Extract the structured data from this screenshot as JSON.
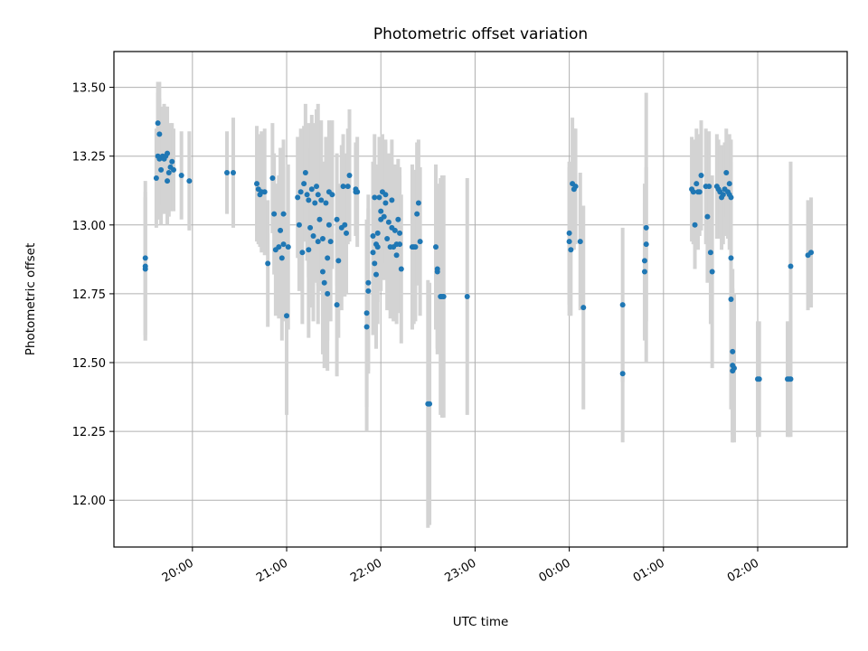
{
  "chart_data": {
    "type": "scatter",
    "title": "Photometric offset variation",
    "xlabel": "UTC time",
    "ylabel": "Photometric offset",
    "xlim": [
      "19:10",
      "02:57"
    ],
    "ylim": [
      11.83,
      13.63
    ],
    "grid": true,
    "x_ticks": [
      "20:00",
      "21:00",
      "22:00",
      "23:00",
      "00:00",
      "01:00",
      "02:00"
    ],
    "y_ticks": [
      "12.00",
      "12.25",
      "12.50",
      "12.75",
      "13.00",
      "13.25",
      "13.50"
    ],
    "colors": {
      "points": "#1f77b4",
      "error_bars": "#d3d3d3",
      "grid": "#b0b0b0"
    },
    "series": [
      {
        "points": [
          {
            "t": "19:30",
            "y": 12.85,
            "e": 0.27
          },
          {
            "t": "19:30",
            "y": 12.88,
            "e": 0.28
          },
          {
            "t": "19:30",
            "y": 12.84,
            "e": 0.26
          },
          {
            "t": "19:37",
            "y": 13.17,
            "e": 0.18
          },
          {
            "t": "19:38",
            "y": 13.25,
            "e": 0.23
          },
          {
            "t": "19:38",
            "y": 13.37,
            "e": 0.15
          },
          {
            "t": "19:39",
            "y": 13.24,
            "e": 0.22
          },
          {
            "t": "19:39",
            "y": 13.33,
            "e": 0.19
          },
          {
            "t": "19:40",
            "y": 13.2,
            "e": 0.2
          },
          {
            "t": "19:41",
            "y": 13.25,
            "e": 0.18
          },
          {
            "t": "19:42",
            "y": 13.24,
            "e": 0.2
          },
          {
            "t": "19:43",
            "y": 13.25,
            "e": 0.18
          },
          {
            "t": "19:44",
            "y": 13.16,
            "e": 0.16
          },
          {
            "t": "19:44",
            "y": 13.26,
            "e": 0.17
          },
          {
            "t": "19:45",
            "y": 13.19,
            "e": 0.16
          },
          {
            "t": "19:46",
            "y": 13.21,
            "e": 0.16
          },
          {
            "t": "19:47",
            "y": 13.23,
            "e": 0.14
          },
          {
            "t": "19:48",
            "y": 13.2,
            "e": 0.15
          },
          {
            "t": "19:53",
            "y": 13.18,
            "e": 0.16
          },
          {
            "t": "19:58",
            "y": 13.16,
            "e": 0.18
          },
          {
            "t": "20:22",
            "y": 13.19,
            "e": 0.15
          },
          {
            "t": "20:26",
            "y": 13.19,
            "e": 0.2
          },
          {
            "t": "20:41",
            "y": 13.15,
            "e": 0.21
          },
          {
            "t": "20:42",
            "y": 13.13,
            "e": 0.2
          },
          {
            "t": "20:43",
            "y": 13.11,
            "e": 0.19
          },
          {
            "t": "20:44",
            "y": 13.12,
            "e": 0.22
          },
          {
            "t": "20:46",
            "y": 13.12,
            "e": 0.23
          },
          {
            "t": "20:48",
            "y": 12.86,
            "e": 0.23
          },
          {
            "t": "20:51",
            "y": 13.17,
            "e": 0.2
          },
          {
            "t": "20:52",
            "y": 13.04,
            "e": 0.22
          },
          {
            "t": "20:53",
            "y": 12.91,
            "e": 0.24
          },
          {
            "t": "20:55",
            "y": 12.92,
            "e": 0.26
          },
          {
            "t": "20:56",
            "y": 12.98,
            "e": 0.3
          },
          {
            "t": "20:57",
            "y": 12.88,
            "e": 0.3
          },
          {
            "t": "20:58",
            "y": 13.04,
            "e": 0.27
          },
          {
            "t": "20:58",
            "y": 12.93,
            "e": 0.28
          },
          {
            "t": "21:00",
            "y": 12.67,
            "e": 0.36
          },
          {
            "t": "21:01",
            "y": 12.92,
            "e": 0.3
          },
          {
            "t": "21:07",
            "y": 13.1,
            "e": 0.22
          },
          {
            "t": "21:08",
            "y": 13.0,
            "e": 0.24
          },
          {
            "t": "21:09",
            "y": 13.12,
            "e": 0.23
          },
          {
            "t": "21:10",
            "y": 12.9,
            "e": 0.26
          },
          {
            "t": "21:11",
            "y": 13.15,
            "e": 0.21
          },
          {
            "t": "21:12",
            "y": 13.19,
            "e": 0.25
          },
          {
            "t": "21:13",
            "y": 13.11,
            "e": 0.24
          },
          {
            "t": "21:14",
            "y": 12.91,
            "e": 0.32
          },
          {
            "t": "21:14",
            "y": 13.09,
            "e": 0.28
          },
          {
            "t": "21:15",
            "y": 12.99,
            "e": 0.29
          },
          {
            "t": "21:16",
            "y": 13.13,
            "e": 0.27
          },
          {
            "t": "21:17",
            "y": 12.96,
            "e": 0.31
          },
          {
            "t": "21:18",
            "y": 13.08,
            "e": 0.29
          },
          {
            "t": "21:19",
            "y": 13.14,
            "e": 0.28
          },
          {
            "t": "21:20",
            "y": 13.11,
            "e": 0.33
          },
          {
            "t": "21:20",
            "y": 12.94,
            "e": 0.3
          },
          {
            "t": "21:21",
            "y": 13.02,
            "e": 0.26
          },
          {
            "t": "21:22",
            "y": 13.09,
            "e": 0.29
          },
          {
            "t": "21:23",
            "y": 12.95,
            "e": 0.28
          },
          {
            "t": "21:23",
            "y": 12.83,
            "e": 0.3
          },
          {
            "t": "21:24",
            "y": 12.79,
            "e": 0.31
          },
          {
            "t": "21:25",
            "y": 13.08,
            "e": 0.24
          },
          {
            "t": "21:26",
            "y": 12.88,
            "e": 0.3
          },
          {
            "t": "21:26",
            "y": 12.75,
            "e": 0.28
          },
          {
            "t": "21:27",
            "y": 13.0,
            "e": 0.25
          },
          {
            "t": "21:27",
            "y": 13.12,
            "e": 0.26
          },
          {
            "t": "21:28",
            "y": 12.94,
            "e": 0.29
          },
          {
            "t": "21:29",
            "y": 13.11,
            "e": 0.27
          },
          {
            "t": "21:32",
            "y": 13.02,
            "e": 0.24
          },
          {
            "t": "21:32",
            "y": 12.71,
            "e": 0.26
          },
          {
            "t": "21:33",
            "y": 12.87,
            "e": 0.28
          },
          {
            "t": "21:35",
            "y": 12.99,
            "e": 0.3
          },
          {
            "t": "21:36",
            "y": 13.14,
            "e": 0.19
          },
          {
            "t": "21:37",
            "y": 13.0,
            "e": 0.26
          },
          {
            "t": "21:38",
            "y": 12.97,
            "e": 0.22
          },
          {
            "t": "21:39",
            "y": 13.14,
            "e": 0.21
          },
          {
            "t": "21:40",
            "y": 13.18,
            "e": 0.24
          },
          {
            "t": "21:44",
            "y": 13.13,
            "e": 0.17
          },
          {
            "t": "21:44",
            "y": 13.12,
            "e": 0.16
          },
          {
            "t": "21:45",
            "y": 13.12,
            "e": 0.2
          },
          {
            "t": "21:51",
            "y": 12.63,
            "e": 0.38
          },
          {
            "t": "21:51",
            "y": 12.68,
            "e": 0.34
          },
          {
            "t": "21:52",
            "y": 12.79,
            "e": 0.32
          },
          {
            "t": "21:52",
            "y": 12.76,
            "e": 0.3
          },
          {
            "t": "21:55",
            "y": 12.9,
            "e": 0.3
          },
          {
            "t": "21:55",
            "y": 12.96,
            "e": 0.27
          },
          {
            "t": "21:56",
            "y": 13.1,
            "e": 0.23
          },
          {
            "t": "21:56",
            "y": 12.86,
            "e": 0.25
          },
          {
            "t": "21:57",
            "y": 12.82,
            "e": 0.27
          },
          {
            "t": "21:57",
            "y": 12.93,
            "e": 0.26
          },
          {
            "t": "21:58",
            "y": 12.97,
            "e": 0.25
          },
          {
            "t": "21:58",
            "y": 12.92,
            "e": 0.28
          },
          {
            "t": "21:59",
            "y": 13.1,
            "e": 0.22
          },
          {
            "t": "22:00",
            "y": 13.05,
            "e": 0.24
          },
          {
            "t": "22:00",
            "y": 13.02,
            "e": 0.26
          },
          {
            "t": "22:01",
            "y": 13.12,
            "e": 0.21
          },
          {
            "t": "22:02",
            "y": 13.03,
            "e": 0.23
          },
          {
            "t": "22:03",
            "y": 13.08,
            "e": 0.22
          },
          {
            "t": "22:03",
            "y": 13.11,
            "e": 0.2
          },
          {
            "t": "22:04",
            "y": 12.95,
            "e": 0.26
          },
          {
            "t": "22:05",
            "y": 13.01,
            "e": 0.25
          },
          {
            "t": "22:06",
            "y": 12.92,
            "e": 0.26
          },
          {
            "t": "22:07",
            "y": 13.09,
            "e": 0.22
          },
          {
            "t": "22:07",
            "y": 12.99,
            "e": 0.25
          },
          {
            "t": "22:08",
            "y": 12.92,
            "e": 0.27
          },
          {
            "t": "22:09",
            "y": 12.98,
            "e": 0.24
          },
          {
            "t": "22:10",
            "y": 12.93,
            "e": 0.24
          },
          {
            "t": "22:10",
            "y": 12.89,
            "e": 0.25
          },
          {
            "t": "22:11",
            "y": 13.02,
            "e": 0.22
          },
          {
            "t": "22:12",
            "y": 12.97,
            "e": 0.24
          },
          {
            "t": "22:12",
            "y": 12.93,
            "e": 0.25
          },
          {
            "t": "22:13",
            "y": 12.84,
            "e": 0.27
          },
          {
            "t": "22:20",
            "y": 12.92,
            "e": 0.3
          },
          {
            "t": "22:21",
            "y": 12.92,
            "e": 0.28
          },
          {
            "t": "22:22",
            "y": 12.92,
            "e": 0.27
          },
          {
            "t": "22:23",
            "y": 13.04,
            "e": 0.26
          },
          {
            "t": "22:24",
            "y": 13.08,
            "e": 0.23
          },
          {
            "t": "22:25",
            "y": 12.94,
            "e": 0.27
          },
          {
            "t": "22:30",
            "y": 12.35,
            "e": 0.45
          },
          {
            "t": "22:31",
            "y": 12.35,
            "e": 0.44
          },
          {
            "t": "22:35",
            "y": 12.92,
            "e": 0.3
          },
          {
            "t": "22:36",
            "y": 12.83,
            "e": 0.28
          },
          {
            "t": "22:36",
            "y": 12.84,
            "e": 0.31
          },
          {
            "t": "22:38",
            "y": 12.74,
            "e": 0.43
          },
          {
            "t": "22:39",
            "y": 12.74,
            "e": 0.44
          },
          {
            "t": "22:40",
            "y": 12.74,
            "e": 0.44
          },
          {
            "t": "22:55",
            "y": 12.74,
            "e": 0.43
          },
          {
            "t": "00:00",
            "y": 12.97,
            "e": 0.26
          },
          {
            "t": "00:00",
            "y": 12.94,
            "e": 0.27
          },
          {
            "t": "00:01",
            "y": 12.91,
            "e": 0.24
          },
          {
            "t": "00:02",
            "y": 13.15,
            "e": 0.24
          },
          {
            "t": "00:03",
            "y": 13.13,
            "e": 0.22
          },
          {
            "t": "00:04",
            "y": 13.14,
            "e": 0.21
          },
          {
            "t": "00:07",
            "y": 12.94,
            "e": 0.25
          },
          {
            "t": "00:09",
            "y": 12.7,
            "e": 0.37
          },
          {
            "t": "00:34",
            "y": 12.71,
            "e": 0.28
          },
          {
            "t": "00:34",
            "y": 12.46,
            "e": 0.25
          },
          {
            "t": "00:48",
            "y": 12.87,
            "e": 0.28
          },
          {
            "t": "00:48",
            "y": 12.83,
            "e": 0.25
          },
          {
            "t": "00:49",
            "y": 12.93,
            "e": 0.28
          },
          {
            "t": "00:49",
            "y": 12.99,
            "e": 0.49
          },
          {
            "t": "01:18",
            "y": 13.13,
            "e": 0.19
          },
          {
            "t": "01:19",
            "y": 13.12,
            "e": 0.19
          },
          {
            "t": "01:20",
            "y": 13.0,
            "e": 0.16
          },
          {
            "t": "01:21",
            "y": 13.15,
            "e": 0.2
          },
          {
            "t": "01:22",
            "y": 13.12,
            "e": 0.21
          },
          {
            "t": "01:23",
            "y": 13.12,
            "e": 0.16
          },
          {
            "t": "01:24",
            "y": 13.18,
            "e": 0.2
          },
          {
            "t": "01:27",
            "y": 13.14,
            "e": 0.21
          },
          {
            "t": "01:28",
            "y": 13.03,
            "e": 0.24
          },
          {
            "t": "01:29",
            "y": 13.14,
            "e": 0.2
          },
          {
            "t": "01:30",
            "y": 12.9,
            "e": 0.26
          },
          {
            "t": "01:31",
            "y": 12.83,
            "e": 0.35
          },
          {
            "t": "01:34",
            "y": 13.14,
            "e": 0.19
          },
          {
            "t": "01:35",
            "y": 13.13,
            "e": 0.18
          },
          {
            "t": "01:36",
            "y": 13.12,
            "e": 0.17
          },
          {
            "t": "01:37",
            "y": 13.1,
            "e": 0.19
          },
          {
            "t": "01:38",
            "y": 13.11,
            "e": 0.18
          },
          {
            "t": "01:39",
            "y": 13.13,
            "e": 0.17
          },
          {
            "t": "01:40",
            "y": 13.19,
            "e": 0.16
          },
          {
            "t": "01:41",
            "y": 13.12,
            "e": 0.17
          },
          {
            "t": "01:42",
            "y": 13.15,
            "e": 0.18
          },
          {
            "t": "01:42",
            "y": 13.11,
            "e": 0.2
          },
          {
            "t": "01:43",
            "y": 13.1,
            "e": 0.21
          },
          {
            "t": "01:43",
            "y": 12.88,
            "e": 0.35
          },
          {
            "t": "01:43",
            "y": 12.73,
            "e": 0.4
          },
          {
            "t": "01:44",
            "y": 12.54,
            "e": 0.3
          },
          {
            "t": "01:44",
            "y": 12.49,
            "e": 0.28
          },
          {
            "t": "01:44",
            "y": 12.47,
            "e": 0.26
          },
          {
            "t": "01:45",
            "y": 12.48,
            "e": 0.27
          },
          {
            "t": "02:00",
            "y": 12.44,
            "e": 0.21
          },
          {
            "t": "02:01",
            "y": 12.44,
            "e": 0.21
          },
          {
            "t": "02:19",
            "y": 12.44,
            "e": 0.21
          },
          {
            "t": "02:20",
            "y": 12.44,
            "e": 0.21
          },
          {
            "t": "02:21",
            "y": 12.44,
            "e": 0.21
          },
          {
            "t": "02:21",
            "y": 12.85,
            "e": 0.38
          },
          {
            "t": "02:32",
            "y": 12.89,
            "e": 0.2
          },
          {
            "t": "02:34",
            "y": 12.9,
            "e": 0.2
          }
        ]
      }
    ]
  }
}
